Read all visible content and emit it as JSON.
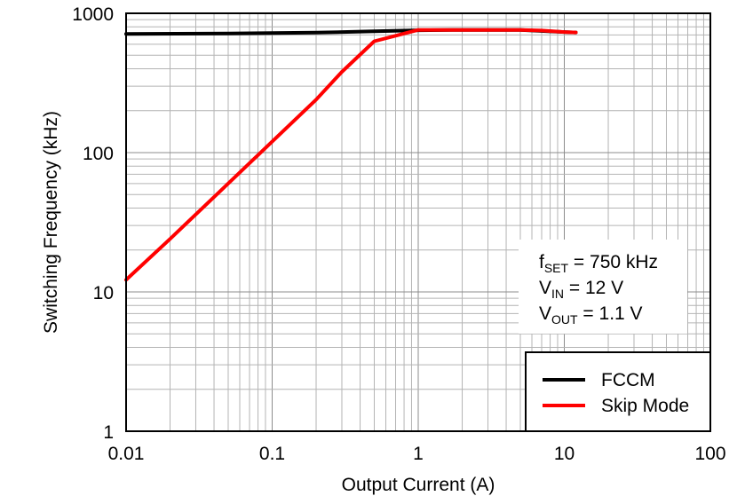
{
  "chart_data": {
    "type": "line",
    "xlabel": "Output Current (A)",
    "ylabel": "Switching Frequency (kHz)",
    "x_scale": "log",
    "y_scale": "log",
    "xlim": [
      0.01,
      100
    ],
    "ylim": [
      1,
      1000
    ],
    "x_ticks": [
      "0.01",
      "0.1",
      "1",
      "10",
      "100"
    ],
    "y_ticks": [
      "1",
      "10",
      "100",
      "1000"
    ],
    "grid": true,
    "legend_position": "bottom-right",
    "annotation": [
      {
        "main": "f",
        "sub": "SET",
        "rest": " = 750 kHz"
      },
      {
        "main": "V",
        "sub": "IN",
        "rest": " = 12 V"
      },
      {
        "main": "V",
        "sub": "OUT",
        "rest": " = 1.1 V"
      }
    ],
    "series": [
      {
        "name": "FCCM",
        "color": "#000000",
        "x": [
          0.01,
          0.05,
          0.2,
          0.5,
          1,
          2,
          5,
          10,
          12
        ],
        "y": [
          712,
          716,
          726,
          742,
          756,
          760,
          760,
          734,
          728
        ]
      },
      {
        "name": "Skip Mode",
        "color": "#ff0000",
        "x": [
          0.01,
          0.02,
          0.05,
          0.1,
          0.2,
          0.3,
          0.5,
          0.7,
          1,
          2,
          5,
          7,
          10,
          12
        ],
        "y": [
          12.2,
          24,
          60,
          120,
          240,
          380,
          630,
          690,
          760,
          760,
          760,
          752,
          734,
          728
        ]
      }
    ]
  }
}
